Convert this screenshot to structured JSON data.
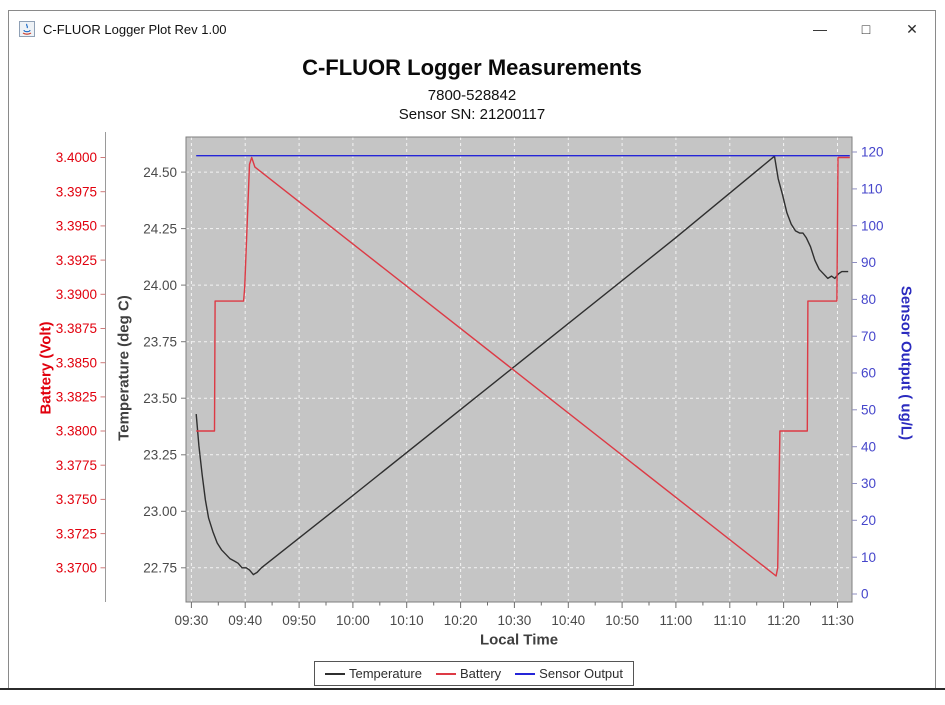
{
  "window": {
    "title": "C-FLUOR Logger Plot Rev 1.00",
    "minimize_glyph": "—",
    "maximize_glyph": "□",
    "close_glyph": "✕"
  },
  "chart_data": {
    "type": "line",
    "title": "C-FLUOR Logger Measurements",
    "subtitle": "7800-528842",
    "subtitle2": "Sensor SN: 21200117",
    "xlabel": "Local Time",
    "x_base_time": "09:30",
    "x_domain_minutes": [
      -1.0,
      122.7
    ],
    "x_ticks": [
      "09:30",
      "09:40",
      "09:50",
      "10:00",
      "10:10",
      "10:20",
      "10:30",
      "10:40",
      "10:50",
      "11:00",
      "11:10",
      "11:20",
      "11:30"
    ],
    "plot_bg": "#c5c5c5",
    "grid_color": "#ffffff",
    "legend_position": "bottom",
    "axes": {
      "battery": {
        "label": "Battery (Volt)",
        "color": "#e1000d",
        "side": "far-left",
        "ticks": [
          "3.4000",
          "3.3975",
          "3.3950",
          "3.3925",
          "3.3900",
          "3.3875",
          "3.3850",
          "3.3825",
          "3.3800",
          "3.3775",
          "3.3750",
          "3.3725",
          "3.3700"
        ],
        "range": [
          3.3675,
          3.4015
        ]
      },
      "temperature": {
        "label": "Temperature (deg C)",
        "color": "#3f3f3f",
        "side": "left",
        "ticks": [
          "24.50",
          "24.25",
          "24.00",
          "23.75",
          "23.50",
          "23.25",
          "23.00",
          "22.75"
        ],
        "range": [
          22.599,
          24.655
        ]
      },
      "sensor": {
        "label": "Sensor Output ( ug/L)",
        "color": "#2b2bbf",
        "side": "right",
        "ticks": [
          "120",
          "110",
          "100",
          "90",
          "80",
          "70",
          "60",
          "50",
          "40",
          "30",
          "20",
          "10",
          "0"
        ],
        "range": [
          -2.17,
          124.08
        ]
      }
    },
    "series": [
      {
        "name": "Temperature",
        "axis": "temperature",
        "color": "#2f2f2f",
        "points": [
          [
            0.9,
            23.43
          ],
          [
            1.4,
            23.29
          ],
          [
            2.0,
            23.16
          ],
          [
            2.6,
            23.05
          ],
          [
            3.2,
            22.97
          ],
          [
            4.0,
            22.91
          ],
          [
            4.8,
            22.86
          ],
          [
            5.6,
            22.83
          ],
          [
            6.4,
            22.81
          ],
          [
            7.2,
            22.79
          ],
          [
            8.0,
            22.78
          ],
          [
            8.7,
            22.77
          ],
          [
            9.4,
            22.75
          ],
          [
            10.2,
            22.75
          ],
          [
            10.8,
            22.74
          ],
          [
            11.5,
            22.72
          ],
          [
            12.2,
            22.73
          ],
          [
            13.0,
            22.75
          ],
          [
            30.0,
            23.07
          ],
          [
            60.0,
            23.64
          ],
          [
            90.0,
            24.21
          ],
          [
            108.3,
            24.57
          ],
          [
            109.0,
            24.47
          ],
          [
            109.8,
            24.4
          ],
          [
            110.6,
            24.32
          ],
          [
            111.4,
            24.27
          ],
          [
            112.2,
            24.24
          ],
          [
            113.0,
            24.23
          ],
          [
            113.6,
            24.23
          ],
          [
            114.2,
            24.21
          ],
          [
            115.0,
            24.17
          ],
          [
            115.8,
            24.11
          ],
          [
            116.6,
            24.07
          ],
          [
            117.4,
            24.05
          ],
          [
            118.2,
            24.03
          ],
          [
            118.9,
            24.04
          ],
          [
            119.5,
            24.03
          ],
          [
            120.2,
            24.05
          ],
          [
            120.8,
            24.06
          ],
          [
            122.0,
            24.06
          ]
        ]
      },
      {
        "name": "Battery",
        "axis": "battery",
        "color": "#dd3a45",
        "points": [
          [
            0.9,
            3.38
          ],
          [
            4.3,
            3.38
          ],
          [
            4.4,
            3.3895
          ],
          [
            9.7,
            3.3895
          ],
          [
            9.9,
            3.3905
          ],
          [
            10.8,
            3.3995
          ],
          [
            11.2,
            3.4
          ],
          [
            11.8,
            3.3993
          ],
          [
            108.6,
            3.3694
          ],
          [
            108.9,
            3.37
          ],
          [
            109.3,
            3.38
          ],
          [
            114.4,
            3.38
          ],
          [
            114.5,
            3.3895
          ],
          [
            119.9,
            3.3895
          ],
          [
            120.1,
            3.4
          ],
          [
            122.3,
            3.4
          ]
        ]
      },
      {
        "name": "Sensor Output",
        "axis": "sensor",
        "color": "#2525d8",
        "points": [
          [
            0.9,
            119.0
          ],
          [
            122.3,
            119.0
          ]
        ]
      }
    ]
  }
}
